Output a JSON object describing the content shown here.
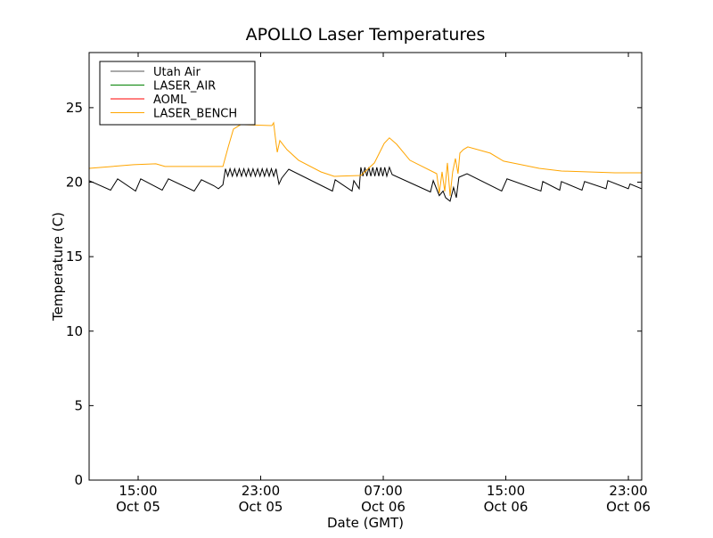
{
  "chart_data": {
    "type": "line",
    "title": "APOLLO Laser Temperatures",
    "xlabel": "Date (GMT)",
    "ylabel": "Temperature (C)",
    "x_units": "hours since Oct 05 00:00 GMT",
    "xlim": [
      11.8,
      47.87
    ],
    "ylim": [
      0,
      28.7
    ],
    "grid": false,
    "legend_position": "top-left",
    "yticks": [
      0,
      5,
      10,
      15,
      20,
      25
    ],
    "xticks": [
      {
        "value": 15,
        "time": "15:00",
        "date": "Oct 05"
      },
      {
        "value": 23,
        "time": "23:00",
        "date": "Oct 05"
      },
      {
        "value": 31,
        "time": "07:00",
        "date": "Oct 06"
      },
      {
        "value": 39,
        "time": "15:00",
        "date": "Oct 06"
      },
      {
        "value": 47,
        "time": "23:00",
        "date": "Oct 06"
      }
    ],
    "series": [
      {
        "name": "Utah Air",
        "color": "#000000",
        "points": [
          [
            11.8,
            20.1
          ],
          [
            13.2,
            19.46
          ],
          [
            13.66,
            20.22
          ],
          [
            14.83,
            19.4
          ],
          [
            15.17,
            20.22
          ],
          [
            16.57,
            19.46
          ],
          [
            16.98,
            20.22
          ],
          [
            18.66,
            19.4
          ],
          [
            19.13,
            20.16
          ],
          [
            19.94,
            19.76
          ],
          [
            20.24,
            19.56
          ],
          [
            20.53,
            19.82
          ],
          [
            20.7,
            20.9
          ],
          [
            20.85,
            20.4
          ],
          [
            21.0,
            20.9
          ],
          [
            21.15,
            20.4
          ],
          [
            21.3,
            20.9
          ],
          [
            21.45,
            20.4
          ],
          [
            21.6,
            20.9
          ],
          [
            21.75,
            20.4
          ],
          [
            21.9,
            20.9
          ],
          [
            22.05,
            20.4
          ],
          [
            22.2,
            20.9
          ],
          [
            22.35,
            20.4
          ],
          [
            22.5,
            20.9
          ],
          [
            22.65,
            20.4
          ],
          [
            22.8,
            20.9
          ],
          [
            22.95,
            20.4
          ],
          [
            23.1,
            20.9
          ],
          [
            23.25,
            20.4
          ],
          [
            23.4,
            20.9
          ],
          [
            23.55,
            20.4
          ],
          [
            23.7,
            20.9
          ],
          [
            23.85,
            20.4
          ],
          [
            24.0,
            20.9
          ],
          [
            24.19,
            19.86
          ],
          [
            24.37,
            20.27
          ],
          [
            24.83,
            20.87
          ],
          [
            27.68,
            19.4
          ],
          [
            27.86,
            20.16
          ],
          [
            28.96,
            19.4
          ],
          [
            29.08,
            20.1
          ],
          [
            29.43,
            19.56
          ],
          [
            29.54,
            21.0
          ],
          [
            29.67,
            20.4
          ],
          [
            29.8,
            21.0
          ],
          [
            29.93,
            20.4
          ],
          [
            30.06,
            21.0
          ],
          [
            30.19,
            20.4
          ],
          [
            30.32,
            21.0
          ],
          [
            30.45,
            20.4
          ],
          [
            30.58,
            21.0
          ],
          [
            30.71,
            20.4
          ],
          [
            30.84,
            21.0
          ],
          [
            30.97,
            20.4
          ],
          [
            31.1,
            21.0
          ],
          [
            31.23,
            20.4
          ],
          [
            31.4,
            21.0
          ],
          [
            31.58,
            20.51
          ],
          [
            34.08,
            19.34
          ],
          [
            34.26,
            20.1
          ],
          [
            34.66,
            19.1
          ],
          [
            34.9,
            19.4
          ],
          [
            35.07,
            18.96
          ],
          [
            35.36,
            18.72
          ],
          [
            35.59,
            19.64
          ],
          [
            35.77,
            18.96
          ],
          [
            35.94,
            20.33
          ],
          [
            36.47,
            20.57
          ],
          [
            38.73,
            19.4
          ],
          [
            39.08,
            20.22
          ],
          [
            41.29,
            19.4
          ],
          [
            41.41,
            20.04
          ],
          [
            42.52,
            19.46
          ],
          [
            42.63,
            20.04
          ],
          [
            43.97,
            19.46
          ],
          [
            44.14,
            20.04
          ],
          [
            45.54,
            19.56
          ],
          [
            45.66,
            20.1
          ],
          [
            47.0,
            19.56
          ],
          [
            47.11,
            19.88
          ],
          [
            47.87,
            19.56
          ]
        ]
      },
      {
        "name": "LASER_AIR",
        "color": "#008000",
        "points": []
      },
      {
        "name": "AOML",
        "color": "#ff0000",
        "points": []
      },
      {
        "name": "LASER_BENCH",
        "color": "#ffa500",
        "points": [
          [
            11.8,
            20.93
          ],
          [
            14.71,
            21.17
          ],
          [
            16.16,
            21.23
          ],
          [
            16.75,
            21.05
          ],
          [
            20.53,
            21.05
          ],
          [
            20.88,
            22.37
          ],
          [
            21.22,
            23.56
          ],
          [
            21.69,
            23.86
          ],
          [
            23.73,
            23.8
          ],
          [
            23.84,
            23.98
          ],
          [
            23.96,
            22.97
          ],
          [
            24.08,
            22.01
          ],
          [
            24.25,
            22.79
          ],
          [
            24.71,
            22.19
          ],
          [
            25.47,
            21.47
          ],
          [
            26.93,
            20.69
          ],
          [
            27.8,
            20.39
          ],
          [
            29.54,
            20.45
          ],
          [
            30.42,
            21.29
          ],
          [
            31.06,
            22.61
          ],
          [
            31.4,
            22.97
          ],
          [
            31.87,
            22.55
          ],
          [
            32.74,
            21.47
          ],
          [
            34.49,
            20.57
          ],
          [
            34.66,
            19.26
          ],
          [
            34.84,
            20.69
          ],
          [
            35.01,
            19.38
          ],
          [
            35.19,
            21.29
          ],
          [
            35.36,
            19.08
          ],
          [
            35.53,
            20.69
          ],
          [
            35.71,
            21.59
          ],
          [
            35.88,
            20.57
          ],
          [
            36.0,
            21.95
          ],
          [
            36.23,
            22.19
          ],
          [
            36.52,
            22.37
          ],
          [
            37.98,
            21.95
          ],
          [
            38.85,
            21.41
          ],
          [
            39.72,
            21.23
          ],
          [
            41.18,
            20.93
          ],
          [
            42.63,
            20.75
          ],
          [
            46.12,
            20.63
          ],
          [
            47.87,
            20.63
          ]
        ]
      }
    ]
  }
}
